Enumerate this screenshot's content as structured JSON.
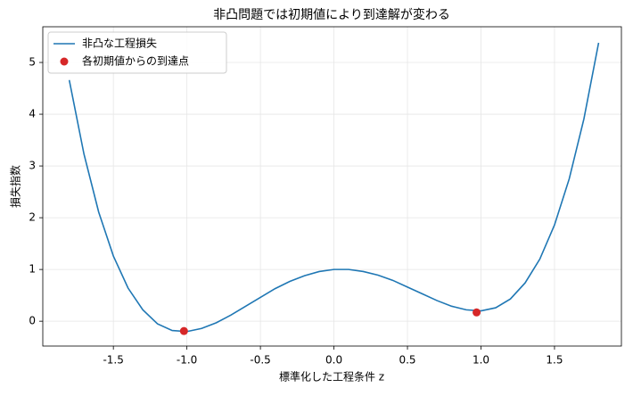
{
  "chart_data": {
    "type": "line",
    "title": "非凸問題では初期値により到達解が変わる",
    "xlabel": "標準化した工程条件 z",
    "ylabel": "損失指数",
    "xlim": [
      -1.98,
      1.955
    ],
    "ylim": [
      -0.48,
      5.69
    ],
    "xticks": [
      -1.5,
      -1.0,
      -0.5,
      0.0,
      0.5,
      1.0,
      1.5
    ],
    "yticks": [
      0,
      1,
      2,
      3,
      4,
      5
    ],
    "grid": true,
    "legend": "upper left",
    "series": [
      {
        "name": "非凸な工程損失",
        "type": "line",
        "color": "#1f77b4",
        "x": [
          -1.8,
          -1.7,
          -1.6,
          -1.5,
          -1.4,
          -1.3,
          -1.2,
          -1.1,
          -1.0,
          -0.9,
          -0.8,
          -0.7,
          -0.6,
          -0.5,
          -0.4,
          -0.3,
          -0.2,
          -0.1,
          0.0,
          0.1,
          0.2,
          0.3,
          0.4,
          0.5,
          0.6,
          0.7,
          0.8,
          0.9,
          1.0,
          1.1,
          1.2,
          1.3,
          1.4,
          1.5,
          1.6,
          1.7,
          1.8
        ],
        "values": [
          4.66,
          3.23,
          2.11,
          1.26,
          0.64,
          0.22,
          -0.05,
          -0.18,
          -0.2,
          -0.14,
          -0.03,
          0.12,
          0.29,
          0.46,
          0.63,
          0.77,
          0.88,
          0.96,
          1,
          1.0,
          0.96,
          0.89,
          0.79,
          0.66,
          0.53,
          0.4,
          0.29,
          0.22,
          0.2,
          0.26,
          0.43,
          0.74,
          1.2,
          1.86,
          2.75,
          3.91,
          5.38
        ]
      },
      {
        "name": "各初期値からの到達点",
        "type": "scatter",
        "color": "#d62728",
        "x": [
          -1.02,
          0.97
        ],
        "values": [
          -0.19,
          0.17
        ]
      }
    ]
  }
}
